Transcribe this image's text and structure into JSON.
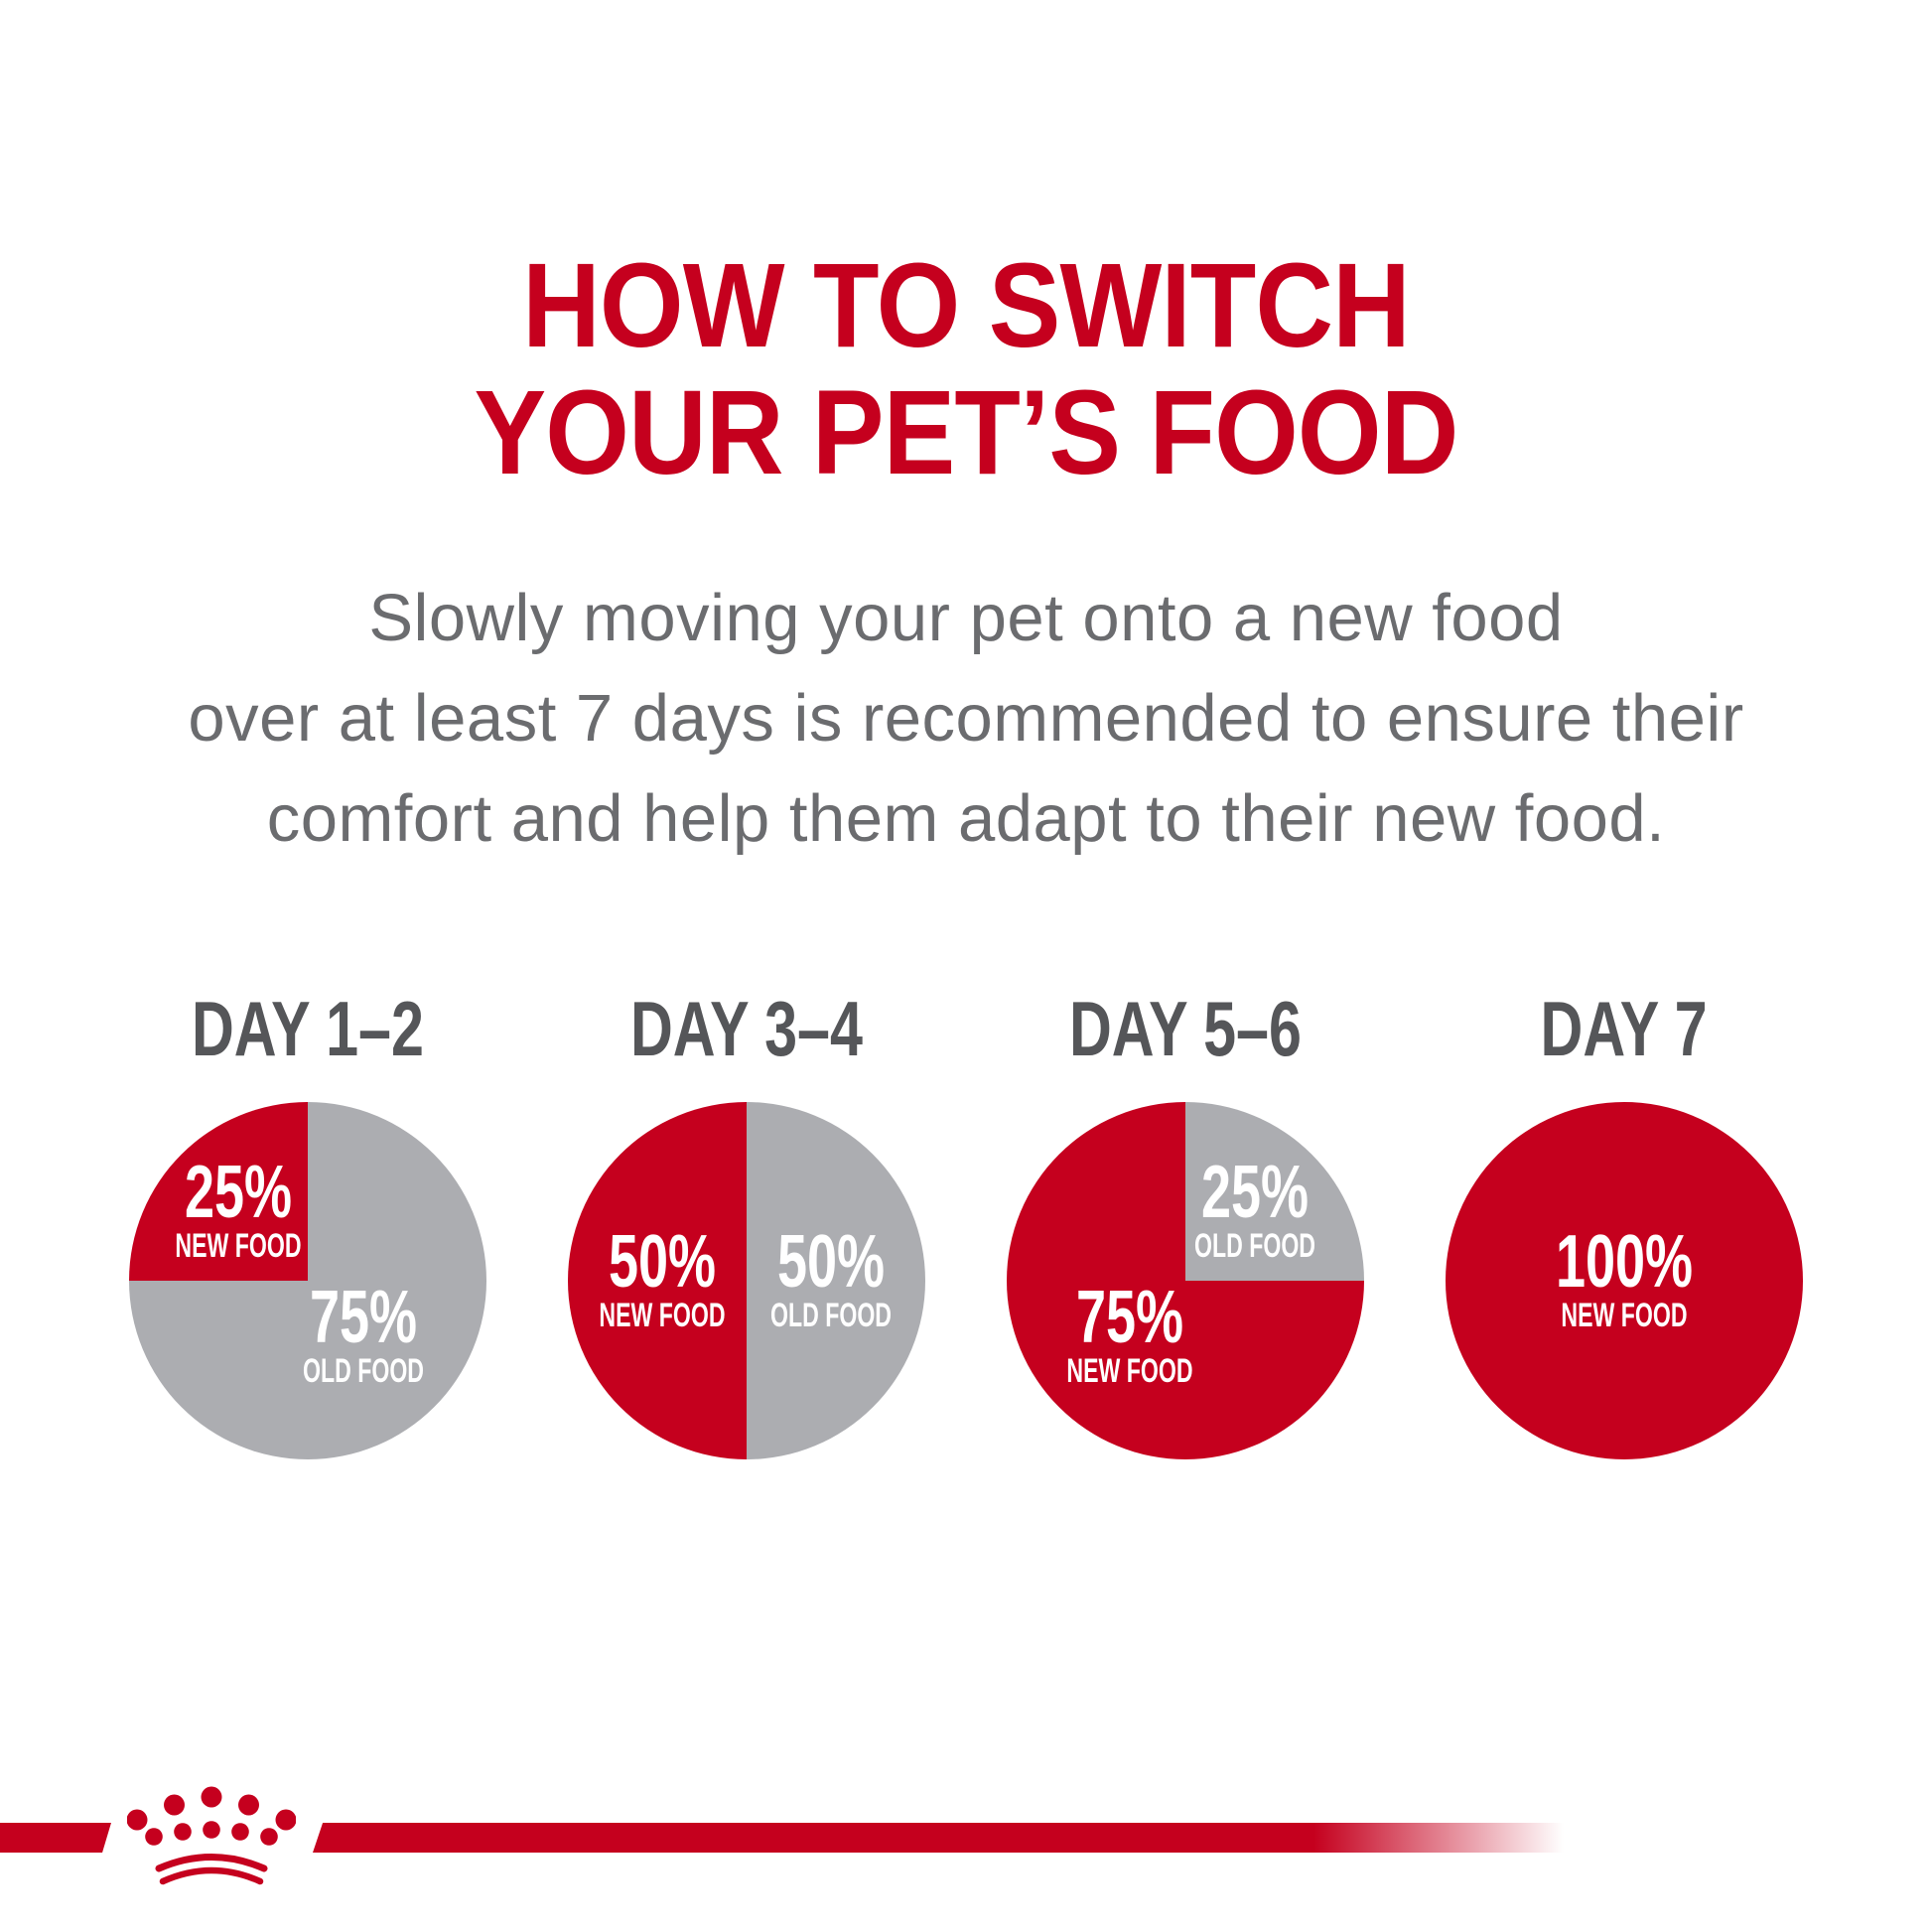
{
  "title": {
    "line1": "HOW TO SWITCH",
    "line2": "YOUR PET’S FOOD"
  },
  "subtitle": {
    "line1": "Slowly moving your pet onto a new food",
    "line2": "over at least 7 days is recommended to ensure their",
    "line3": "comfort and help them adapt to their new food."
  },
  "colors": {
    "brand_red": "#C5001E",
    "pie_gray": "#ACADB1",
    "heading_gray": "#555659",
    "body_gray": "#6B6C6F",
    "label_white": "#FFFFFF"
  },
  "chart_data": [
    {
      "type": "pie",
      "title": "DAY 1–2",
      "slices": [
        {
          "label": "NEW FOOD",
          "value": 25,
          "color": "#C5001E"
        },
        {
          "label": "OLD FOOD",
          "value": 75,
          "color": "#ACADB1"
        }
      ],
      "layout": {
        "slice_boundary_at_top": true,
        "new_food_on_left": true,
        "legend": "labels-inside"
      }
    },
    {
      "type": "pie",
      "title": "DAY 3–4",
      "slices": [
        {
          "label": "NEW FOOD",
          "value": 50,
          "color": "#C5001E"
        },
        {
          "label": "OLD FOOD",
          "value": 50,
          "color": "#ACADB1"
        }
      ],
      "layout": {
        "slice_boundary_at_top": true,
        "new_food_on_left": true,
        "legend": "labels-inside"
      }
    },
    {
      "type": "pie",
      "title": "DAY 5–6",
      "slices": [
        {
          "label": "NEW FOOD",
          "value": 75,
          "color": "#C5001E"
        },
        {
          "label": "OLD FOOD",
          "value": 25,
          "color": "#ACADB1"
        }
      ],
      "layout": {
        "slice_boundary_at_top": true,
        "new_food_on_left": true,
        "legend": "labels-inside"
      }
    },
    {
      "type": "pie",
      "title": "DAY 7",
      "slices": [
        {
          "label": "NEW FOOD",
          "value": 100,
          "color": "#C5001E"
        }
      ],
      "layout": {
        "slice_boundary_at_top": true,
        "new_food_on_left": true,
        "legend": "labels-inside"
      }
    }
  ],
  "footer": {
    "logo": "royal-canin-crown"
  }
}
